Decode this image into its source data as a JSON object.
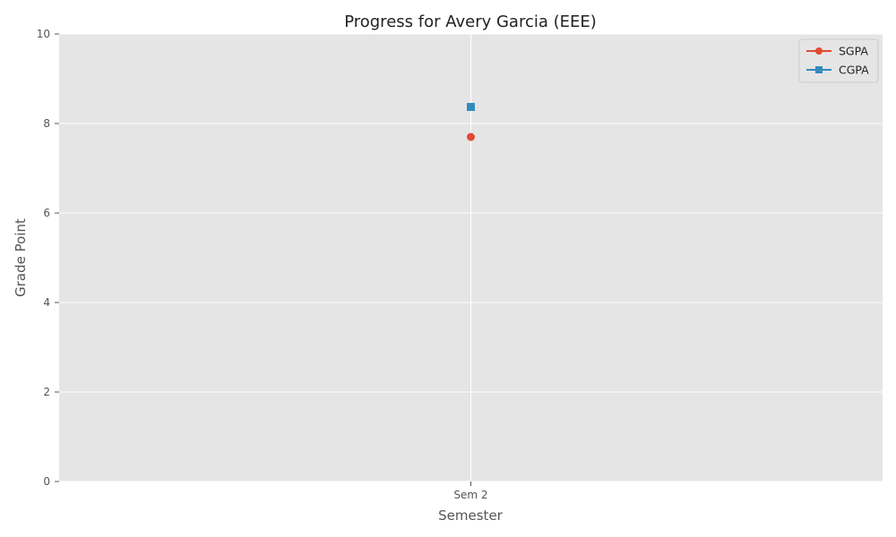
{
  "chart_data": {
    "type": "line",
    "title": "Progress for Avery Garcia (EEE)",
    "xlabel": "Semester",
    "ylabel": "Grade Point",
    "categories": [
      "Sem 2"
    ],
    "ylim": [
      0,
      10
    ],
    "yticks": [
      "0",
      "2",
      "4",
      "6",
      "8",
      "10"
    ],
    "grid": true,
    "legend_position": "top-right",
    "series": [
      {
        "name": "SGPA",
        "values": [
          7.7
        ],
        "color": "#E24A33",
        "marker": "circle"
      },
      {
        "name": "CGPA",
        "values": [
          8.37
        ],
        "color": "#348ABD",
        "marker": "square"
      }
    ]
  },
  "colors": {
    "plot_background": "#E5E5E5",
    "grid": "#FFFFFF",
    "tick": "#555555"
  }
}
